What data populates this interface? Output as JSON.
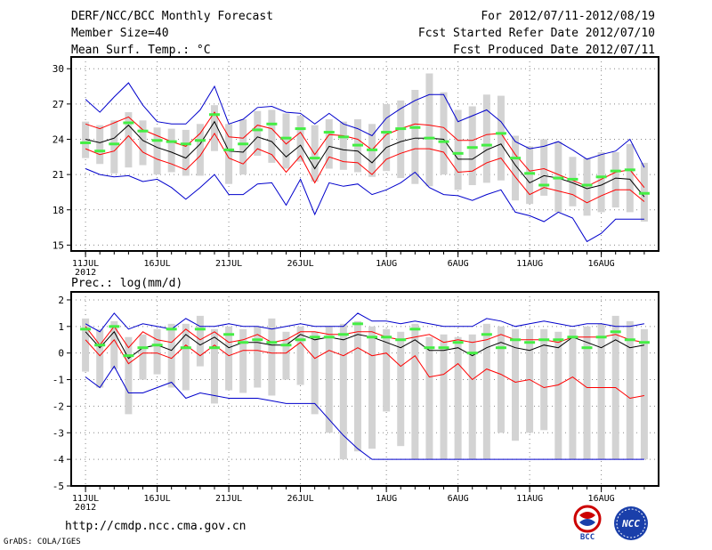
{
  "header": {
    "title": "DERF/NCC/BCC Monthly Forecast",
    "member_size": "Member Size=40",
    "variable": "Mean Surf. Temp.: °C",
    "for_range": "For 2012/07/11-2012/08/19",
    "refer_date": "Fcst Started Refer Date 2012/07/10",
    "produced_date": "Fcst Produced Date 2012/07/11"
  },
  "footer": {
    "url": "http://cmdp.ncc.cma.gov.cn",
    "credit": "GrADS: COLA/IGES",
    "logo_left_text": "BCC",
    "logo_right_text": "NCC"
  },
  "colors": {
    "mean": "#000000",
    "spread": "#ff0000",
    "range": "#0000cc",
    "box": "#d3d3d3",
    "mark": "#44ee44",
    "grid": "#888888"
  },
  "chart_data": [
    {
      "type": "line",
      "title": "Mean Surf. Temp.: °C",
      "ylabel": "°C",
      "ylim": [
        14.5,
        31
      ],
      "yticks": [
        15,
        18,
        21,
        24,
        27,
        30
      ],
      "x_ticks": [
        {
          "day": 0,
          "label": "11JUL"
        },
        {
          "day": 5,
          "label": "16JUL"
        },
        {
          "day": 10,
          "label": "21JUL"
        },
        {
          "day": 15,
          "label": "26JUL"
        },
        {
          "day": 21,
          "label": "1AUG"
        },
        {
          "day": 26,
          "label": "6AUG"
        },
        {
          "day": 31,
          "label": "11AUG"
        },
        {
          "day": 36,
          "label": "16AUG"
        }
      ],
      "year_label": "2012",
      "series": [
        {
          "name": "max",
          "values": [
            27.4,
            26.3,
            27.6,
            28.8,
            26.9,
            25.5,
            25.3,
            25.3,
            26.5,
            28.5,
            25.3,
            25.7,
            26.7,
            26.8,
            26.3,
            26.2,
            25.3,
            26.2,
            25.3,
            24.9,
            24.3,
            25.8,
            26.6,
            27.3,
            27.8,
            27.8,
            25.5,
            26.0,
            26.5,
            25.5,
            23.8,
            23.2,
            23.4,
            23.8,
            23.1,
            22.3,
            22.7,
            23.0,
            24.0,
            21.6
          ]
        },
        {
          "name": "upper",
          "values": [
            25.3,
            24.9,
            25.4,
            25.9,
            24.8,
            24.3,
            23.8,
            23.4,
            24.5,
            26.3,
            24.2,
            24.1,
            25.2,
            24.9,
            23.6,
            24.6,
            22.7,
            24.4,
            24.3,
            24.0,
            23.1,
            24.4,
            24.9,
            25.3,
            25.2,
            25.0,
            23.9,
            23.9,
            24.4,
            24.5,
            22.7,
            21.3,
            21.5,
            21.0,
            20.5,
            20.0,
            20.6,
            21.2,
            21.4,
            19.9
          ]
        },
        {
          "name": "mean",
          "values": [
            24.0,
            23.7,
            24.1,
            25.2,
            23.9,
            23.3,
            22.9,
            22.4,
            23.6,
            25.5,
            23.0,
            22.9,
            24.2,
            23.8,
            22.5,
            23.5,
            21.5,
            23.4,
            23.1,
            23.0,
            22.0,
            23.3,
            23.8,
            24.1,
            24.1,
            24.0,
            22.3,
            22.3,
            23.1,
            23.6,
            21.8,
            20.3,
            20.9,
            20.7,
            20.3,
            19.8,
            20.1,
            20.7,
            20.6,
            19.1
          ]
        },
        {
          "name": "lower",
          "values": [
            23.2,
            22.7,
            23.0,
            24.3,
            22.9,
            22.3,
            21.9,
            21.4,
            22.6,
            24.5,
            22.4,
            21.9,
            23.2,
            22.7,
            21.2,
            22.6,
            20.3,
            22.5,
            22.1,
            22.0,
            21.0,
            22.3,
            22.8,
            23.2,
            23.2,
            22.9,
            21.2,
            21.3,
            22.0,
            22.4,
            20.8,
            19.3,
            19.9,
            19.6,
            19.3,
            18.6,
            19.2,
            19.7,
            19.7,
            18.7
          ]
        },
        {
          "name": "min",
          "values": [
            21.5,
            21.0,
            20.8,
            20.9,
            20.4,
            20.6,
            19.9,
            18.9,
            19.9,
            21.0,
            19.3,
            19.3,
            20.2,
            20.3,
            18.4,
            20.6,
            17.6,
            20.3,
            20.0,
            20.2,
            19.3,
            19.7,
            20.3,
            21.2,
            19.9,
            19.3,
            19.2,
            18.8,
            19.3,
            19.7,
            17.8,
            17.5,
            17.0,
            17.8,
            17.3,
            15.3,
            16.0,
            17.2,
            17.2,
            17.2
          ]
        },
        {
          "name": "box_top",
          "values": [
            25.5,
            25.2,
            25.6,
            26.3,
            25.6,
            25.0,
            24.9,
            24.8,
            25.3,
            26.9,
            25.3,
            25.7,
            26.4,
            26.5,
            26.2,
            26.0,
            25.2,
            25.7,
            25.5,
            25.7,
            25.3,
            27.0,
            27.3,
            28.2,
            29.6,
            28.0,
            26.5,
            26.8,
            27.8,
            27.7,
            24.3,
            23.4,
            24.0,
            23.8,
            22.5,
            22.4,
            22.9,
            22.9,
            23.6,
            22.0
          ]
        },
        {
          "name": "box_bottom",
          "values": [
            22.4,
            21.9,
            21.1,
            21.6,
            21.8,
            21.0,
            21.2,
            20.9,
            20.9,
            23.0,
            20.2,
            21.0,
            22.6,
            22.0,
            21.5,
            22.1,
            20.4,
            21.5,
            21.4,
            21.2,
            20.8,
            21.3,
            20.7,
            20.2,
            20.0,
            21.0,
            19.7,
            20.1,
            20.3,
            20.5,
            18.8,
            18.5,
            19.2,
            17.8,
            18.3,
            17.5,
            17.8,
            18.2,
            17.8,
            17.0
          ]
        },
        {
          "name": "mark",
          "values": [
            23.7,
            23.0,
            23.6,
            25.4,
            24.7,
            23.9,
            23.8,
            23.6,
            23.9,
            26.1,
            23.1,
            23.6,
            24.8,
            25.3,
            24.1,
            24.9,
            22.4,
            24.6,
            24.2,
            23.5,
            23.1,
            24.6,
            24.9,
            25.0,
            24.1,
            23.8,
            22.8,
            23.3,
            23.5,
            24.5,
            22.4,
            21.1,
            20.1,
            20.7,
            20.6,
            20.1,
            20.8,
            21.3,
            21.4,
            19.4
          ]
        }
      ]
    },
    {
      "type": "line",
      "title": "Prec.: log(mm/d)",
      "ylabel": "log(mm/d)",
      "ylim": [
        -5,
        2.3
      ],
      "yticks": [
        -5,
        -4,
        -3,
        -2,
        -1,
        0,
        1,
        2
      ],
      "x_ticks": [
        {
          "day": 0,
          "label": "11JUL"
        },
        {
          "day": 5,
          "label": "16JUL"
        },
        {
          "day": 10,
          "label": "21JUL"
        },
        {
          "day": 15,
          "label": "26JUL"
        },
        {
          "day": 21,
          "label": "1AUG"
        },
        {
          "day": 26,
          "label": "6AUG"
        },
        {
          "day": 31,
          "label": "11AUG"
        },
        {
          "day": 36,
          "label": "16AUG"
        }
      ],
      "year_label": "2012",
      "series": [
        {
          "name": "max",
          "values": [
            1.1,
            0.8,
            1.5,
            0.9,
            1.1,
            1.0,
            0.9,
            1.3,
            1.0,
            1.0,
            1.1,
            1.0,
            1.0,
            0.9,
            1.0,
            1.1,
            1.0,
            1.0,
            1.0,
            1.5,
            1.2,
            1.2,
            1.1,
            1.2,
            1.1,
            1.0,
            1.0,
            1.0,
            1.3,
            1.2,
            1.0,
            1.1,
            1.2,
            1.1,
            1.0,
            1.1,
            1.1,
            1.0,
            1.0,
            1.1
          ]
        },
        {
          "name": "upper",
          "values": [
            1.0,
            0.3,
            1.0,
            0.2,
            0.8,
            0.5,
            0.4,
            0.9,
            0.5,
            0.8,
            0.4,
            0.5,
            0.7,
            0.4,
            0.5,
            0.8,
            0.8,
            0.7,
            0.7,
            0.8,
            0.8,
            0.6,
            0.5,
            0.6,
            0.7,
            0.4,
            0.5,
            0.4,
            0.5,
            0.7,
            0.5,
            0.5,
            0.5,
            0.4,
            0.6,
            0.6,
            0.6,
            0.7,
            0.5,
            0.4
          ]
        },
        {
          "name": "mean",
          "values": [
            0.8,
            0.2,
            0.8,
            -0.2,
            0.2,
            0.3,
            0.1,
            0.7,
            0.3,
            0.6,
            0.2,
            0.4,
            0.4,
            0.3,
            0.3,
            0.7,
            0.5,
            0.6,
            0.5,
            0.7,
            0.6,
            0.4,
            0.2,
            0.5,
            0.1,
            0.1,
            0.2,
            -0.1,
            0.2,
            0.4,
            0.2,
            0.1,
            0.3,
            0.2,
            0.6,
            0.4,
            0.2,
            0.5,
            0.2,
            0.3
          ]
        },
        {
          "name": "lower",
          "values": [
            0.5,
            -0.1,
            0.5,
            -0.4,
            0.0,
            0.0,
            -0.2,
            0.3,
            -0.1,
            0.3,
            -0.1,
            0.1,
            0.1,
            0.0,
            0.0,
            0.4,
            -0.2,
            0.1,
            -0.1,
            0.2,
            -0.1,
            0.0,
            -0.5,
            -0.1,
            -0.9,
            -0.8,
            -0.4,
            -1.0,
            -0.6,
            -0.8,
            -1.1,
            -1.0,
            -1.3,
            -1.2,
            -0.9,
            -1.3,
            -1.3,
            -1.3,
            -1.7,
            -1.6
          ]
        },
        {
          "name": "min",
          "values": [
            -0.9,
            -1.3,
            -0.5,
            -1.5,
            -1.5,
            -1.3,
            -1.1,
            -1.7,
            -1.5,
            -1.6,
            -1.7,
            -1.7,
            -1.7,
            -1.8,
            -1.9,
            -1.9,
            -1.9,
            -2.5,
            -3.1,
            -3.6,
            -4.0,
            -4.0,
            -4.0,
            -4.0,
            -4.0,
            -4.0,
            -4.0,
            -4.0,
            -4.0,
            -4.0,
            -4.0,
            -4.0,
            -4.0,
            -4.0,
            -4.0,
            -4.0,
            -4.0,
            -4.0,
            -4.0,
            -4.0
          ]
        },
        {
          "name": "box_top",
          "values": [
            1.3,
            0.9,
            1.2,
            0.6,
            0.7,
            0.9,
            1.1,
            1.1,
            1.4,
            0.9,
            1.0,
            0.9,
            1.0,
            1.3,
            0.8,
            1.0,
            0.8,
            1.0,
            1.1,
            1.2,
            1.0,
            0.9,
            0.8,
            1.1,
            0.6,
            0.7,
            0.6,
            0.7,
            1.1,
            1.0,
            0.9,
            0.9,
            0.9,
            0.8,
            0.9,
            1.0,
            1.1,
            1.4,
            1.2,
            0.9
          ]
        },
        {
          "name": "box_bottom",
          "values": [
            -0.7,
            -1.3,
            -0.6,
            -2.3,
            -1.0,
            -0.8,
            -1.3,
            -1.4,
            -0.5,
            -1.9,
            -1.4,
            -1.5,
            -1.3,
            -1.6,
            -1.0,
            -1.2,
            -2.3,
            -3.0,
            -4.0,
            -3.7,
            -3.6,
            -2.2,
            -3.5,
            -4.0,
            -4.0,
            -4.0,
            -4.0,
            -4.0,
            -4.0,
            -3.0,
            -3.3,
            -3.0,
            -2.9,
            -4.0,
            -4.0,
            -4.0,
            -4.0,
            -4.0,
            -4.0,
            -4.0
          ]
        },
        {
          "name": "mark",
          "values": [
            0.9,
            0.3,
            1.0,
            -0.1,
            0.2,
            0.3,
            0.9,
            0.2,
            0.9,
            0.2,
            0.7,
            0.4,
            0.5,
            0.4,
            0.3,
            0.5,
            0.6,
            0.6,
            0.7,
            1.1,
            0.6,
            0.6,
            0.5,
            0.9,
            0.2,
            0.2,
            0.4,
            0.0,
            0.7,
            0.2,
            0.5,
            0.4,
            0.5,
            0.5,
            0.6,
            0.2,
            0.6,
            0.8,
            0.5,
            0.4
          ]
        }
      ]
    }
  ]
}
